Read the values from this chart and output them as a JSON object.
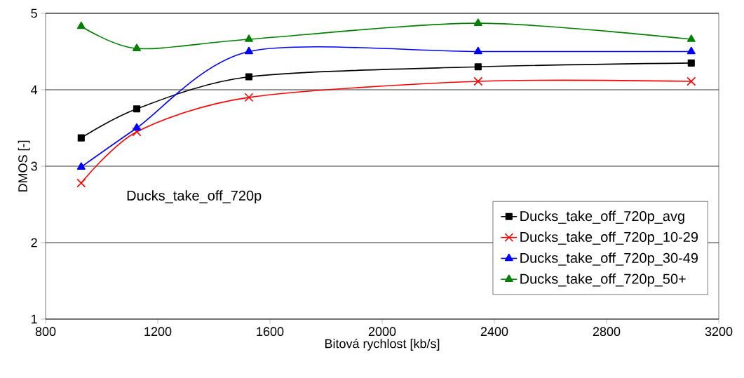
{
  "chart_data": {
    "type": "line",
    "xlabel": "Bitová rychlost [kb/s]",
    "ylabel": "DMOS [-]",
    "annotations": [
      "Ducks_take_off_720p"
    ],
    "x": [
      927,
      1125,
      1525,
      2342,
      3102
    ],
    "series": [
      {
        "name": "Ducks_take_off_720p_avg",
        "color": "#000000",
        "marker": "square",
        "values": [
          3.37,
          3.75,
          4.17,
          4.3,
          4.35
        ]
      },
      {
        "name": "Ducks_take_off_720p_10-29",
        "color": "#ff0000",
        "marker": "cross",
        "values": [
          2.78,
          3.45,
          3.9,
          4.11,
          4.11
        ]
      },
      {
        "name": "Ducks_take_off_720p_30-49",
        "color": "#0000ff",
        "marker": "triangle",
        "values": [
          2.99,
          3.5,
          4.5,
          4.5,
          4.5
        ]
      },
      {
        "name": "Ducks_take_off_720p_50+",
        "color": "#008000",
        "marker": "triangle",
        "values": [
          4.83,
          4.54,
          4.66,
          4.87,
          4.66
        ]
      }
    ],
    "xlim": [
      800,
      3200
    ],
    "xticks": [
      800,
      1200,
      1600,
      2000,
      2400,
      2800,
      3200
    ],
    "ylim": [
      1,
      5
    ],
    "yticks": [
      1,
      2,
      3,
      4,
      5
    ],
    "grid": "y",
    "legend": "bottom right",
    "line_style": "solid"
  }
}
